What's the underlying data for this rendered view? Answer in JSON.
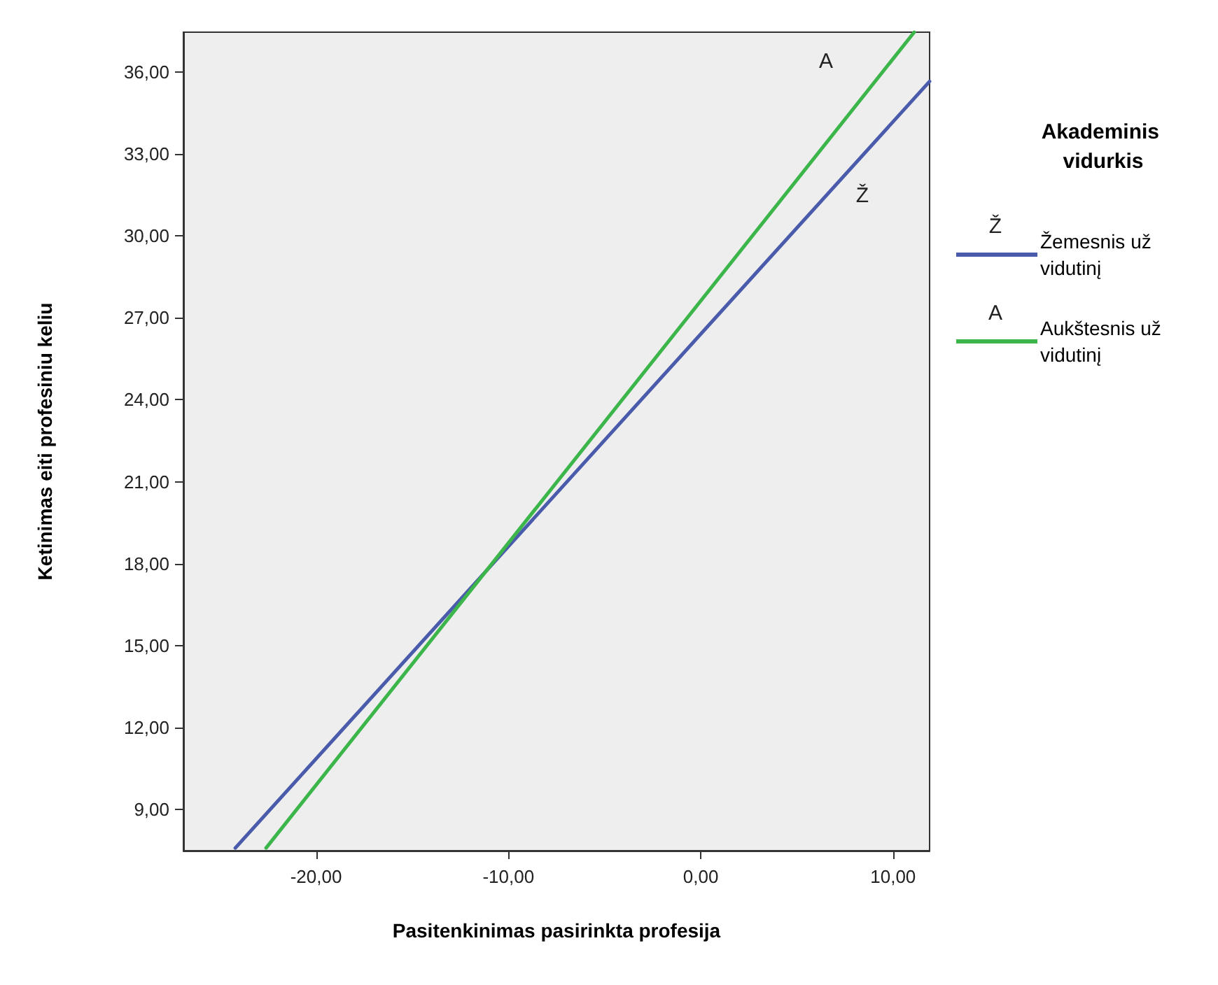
{
  "chart_data": {
    "type": "line",
    "xlabel": "Pasitenkinimas pasirinkta profesija",
    "ylabel": "Ketinimas eiti profesiniu keliu",
    "legend_title": "Akademinis vidurkis",
    "legend": "right",
    "series": [
      {
        "name": "Žemesnis už vidutinį",
        "color": "#4a5bab",
        "x": [
          -24.2,
          11.9
        ],
        "values": [
          7.6,
          35.65
        ]
      },
      {
        "name": "Aukštesnis už vidutinį",
        "color": "#3cb54a",
        "x": [
          -22.6,
          11.1
        ],
        "values": [
          7.6,
          37.45
        ]
      }
    ],
    "annotations": [
      "Ž",
      "A"
    ],
    "xlim": [
      -26.9,
      11.9
    ],
    "xticks": [
      {
        "value": -20,
        "label": "-20,00"
      },
      {
        "value": -10,
        "label": "-10,00"
      },
      {
        "value": 0,
        "label": "0,00"
      },
      {
        "value": 10,
        "label": "10,00"
      }
    ],
    "ylim": [
      7.5,
      37.45
    ],
    "yticks": [
      {
        "value": 9,
        "label": "9,00"
      },
      {
        "value": 12,
        "label": "12,00"
      },
      {
        "value": 15,
        "label": "15,00"
      },
      {
        "value": 18,
        "label": "18,00"
      },
      {
        "value": 21,
        "label": "21,00"
      },
      {
        "value": 24,
        "label": "24,00"
      },
      {
        "value": 27,
        "label": "27,00"
      },
      {
        "value": 30,
        "label": "30,00"
      },
      {
        "value": 33,
        "label": "33,00"
      },
      {
        "value": 36,
        "label": "36,00"
      }
    ],
    "grid": false,
    "marker": "none",
    "line_style": "solid"
  }
}
